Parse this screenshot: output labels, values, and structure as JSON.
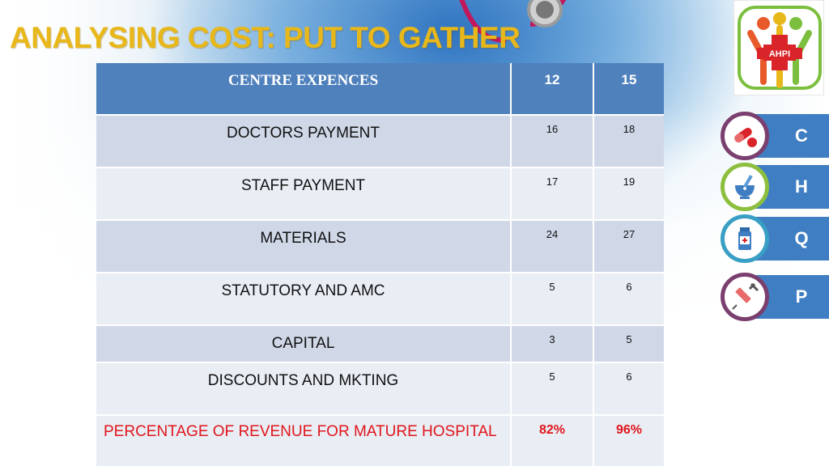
{
  "title": "ANALYSING COST: PUT TO GATHER",
  "logo": {
    "icon": "ahpi-logo-icon",
    "text": "AHPI"
  },
  "table": {
    "header": {
      "label": "CENTRE EXPENCES",
      "col_a": "12",
      "col_b": "15"
    },
    "rows": [
      {
        "label": "DOCTORS PAYMENT",
        "a": "16",
        "b": "18"
      },
      {
        "label": "STAFF PAYMENT",
        "a": "17",
        "b": "19"
      },
      {
        "label": "MATERIALS",
        "a": "24",
        "b": "27"
      },
      {
        "label": "STATUTORY AND AMC",
        "a": "5",
        "b": "6"
      },
      {
        "label": "CAPITAL",
        "a": "3",
        "b": "5"
      },
      {
        "label": "DISCOUNTS AND MKTING",
        "a": "5",
        "b": "6"
      }
    ],
    "footer": {
      "label": "PERCENTAGE OF REVENUE FOR MATURE HOSPITAL",
      "a": "82%",
      "b": "96%"
    }
  },
  "nav": [
    {
      "letter": "C",
      "icon": "pills-icon",
      "ring_color": "#7a3f6e"
    },
    {
      "letter": "H",
      "icon": "mortar-pestle-icon",
      "ring_color": "#8dbf3f"
    },
    {
      "letter": "Q",
      "icon": "medicine-bottle-icon",
      "ring_color": "#3a9fc4"
    },
    {
      "letter": "P",
      "icon": "syringe-icon",
      "ring_color": "#7a3f6e"
    }
  ],
  "colors": {
    "title": "#e8b81a",
    "header_bg": "#4f81bd",
    "row_dark": "#d0d8e8",
    "row_light": "#e9edf4",
    "footer_text": "#e0161c",
    "nav_bar": "#3f7ec2"
  }
}
